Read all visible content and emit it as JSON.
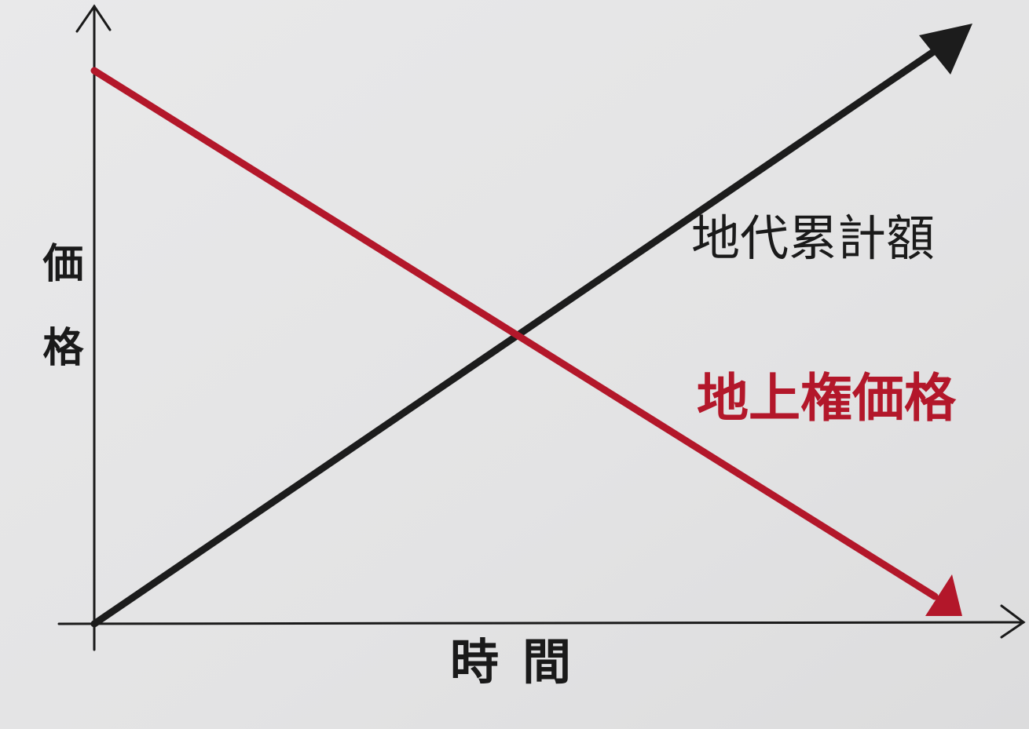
{
  "axes": {
    "y_label": "価格",
    "x_label": "時間"
  },
  "lines": [
    {
      "label": "地代累計額"
    },
    {
      "label": "地上権価格"
    }
  ]
}
